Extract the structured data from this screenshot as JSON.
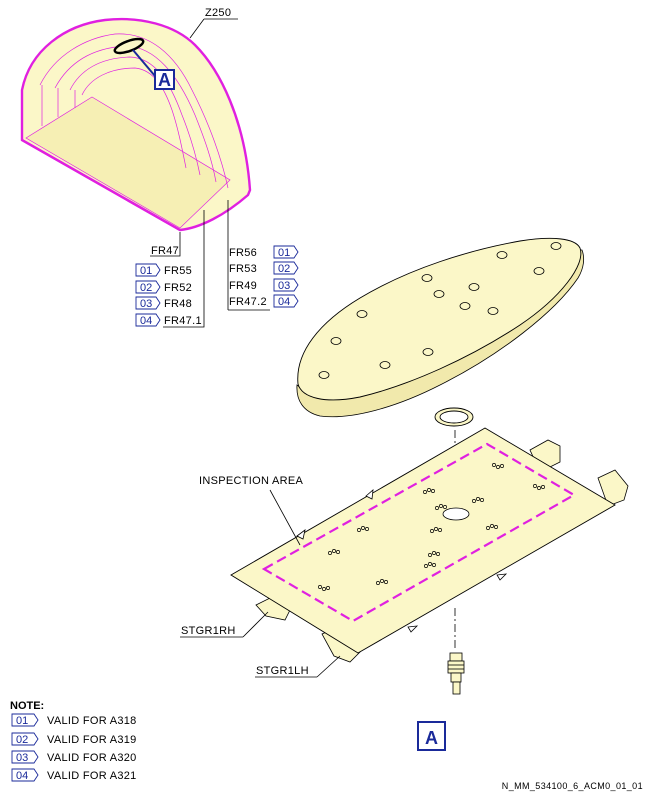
{
  "figure": {
    "zone_label": "Z250",
    "inspection_area_label": "INSPECTION AREA",
    "stringer_rh": "STGR1RH",
    "stringer_lh": "STGR1LH",
    "detail_callout": "A",
    "detail_title": "A",
    "frames_left": [
      {
        "text": "FR47",
        "tag": ""
      },
      {
        "text": "FR55",
        "tag": "01"
      },
      {
        "text": "FR52",
        "tag": "02"
      },
      {
        "text": "FR48",
        "tag": "03"
      },
      {
        "text": "FR47.1",
        "tag": "04"
      }
    ],
    "frames_right": [
      {
        "text": "FR56",
        "tag": "01"
      },
      {
        "text": "FR53",
        "tag": "02"
      },
      {
        "text": "FR49",
        "tag": "03"
      },
      {
        "text": "FR47.2",
        "tag": "04"
      }
    ]
  },
  "note": {
    "title": "NOTE:",
    "items": [
      {
        "tag": "01",
        "text": "VALID FOR A318"
      },
      {
        "tag": "02",
        "text": "VALID FOR A319"
      },
      {
        "tag": "03",
        "text": "VALID FOR A320"
      },
      {
        "tag": "04",
        "text": "VALID FOR A321"
      }
    ]
  },
  "document_id": "N_MM_534100_6_ACM0_01_01",
  "colors": {
    "part_fill": "#fbf7c8",
    "highlight": "#e020e0",
    "callout_blue": "#1a2a9a",
    "line": "#000000"
  }
}
